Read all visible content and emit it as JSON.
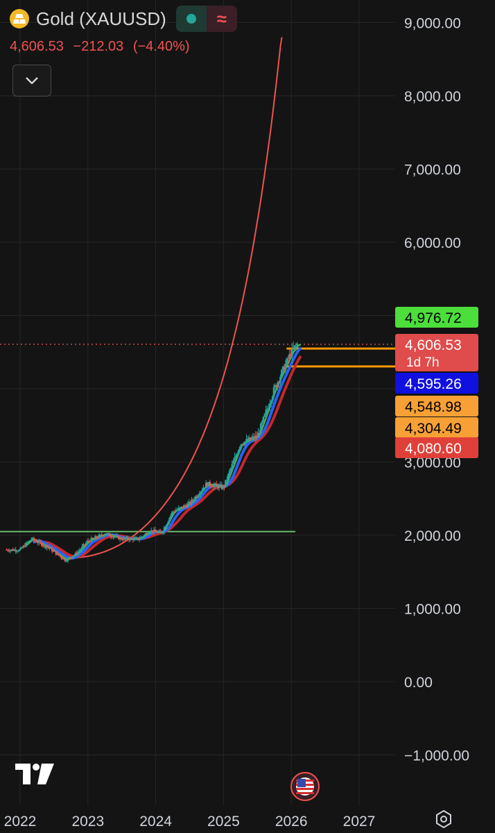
{
  "header": {
    "symbol": "Gold (XAUUSD)",
    "last_price": "4,606.53",
    "change": "−212.03",
    "change_pct": "(−4.40%)",
    "logo_icon": "gold-bars-icon",
    "status_icon": "market-open-dot-icon",
    "wave_icon": "approx-wave-icon"
  },
  "colors": {
    "background": "#141414",
    "up": "#26a69a",
    "down": "#ef5350",
    "ma_green": "#4caf50",
    "ma_blue": "#2962ff",
    "ma_red": "#c62828",
    "curve": "#ef5350",
    "hline": "#ff9800",
    "support_line": "#66bb6a"
  },
  "price_axis": {
    "labels": [
      "9,000.00",
      "8,000.00",
      "7,000.00",
      "6,000.00",
      "3,000.00",
      "2,000.00",
      "1,000.00",
      "0.00",
      "−1,000.00"
    ]
  },
  "time_axis": {
    "labels": [
      "2022",
      "2023",
      "2024",
      "2025",
      "2026",
      "2027"
    ]
  },
  "price_tags": [
    {
      "text": "4,976.72",
      "bg": "#4cde3a",
      "fg": "#000000"
    },
    {
      "text": "4,606.53",
      "sub": "1d 7h",
      "bg": "#e04b4b",
      "fg": "#ffffff"
    },
    {
      "text": "4,595.26",
      "bg": "#1010e0",
      "fg": "#ffffff"
    },
    {
      "text": "4,548.98",
      "bg": "#f7a035",
      "fg": "#000000"
    },
    {
      "text": "4,304.49",
      "bg": "#f7a035",
      "fg": "#000000"
    },
    {
      "text": "4,080.60",
      "bg": "#e0403a",
      "fg": "#ffffff"
    }
  ],
  "chart_data": {
    "type": "line",
    "x": [
      "2022-01",
      "2022-03",
      "2022-06",
      "2022-09",
      "2022-11",
      "2023-01",
      "2023-04",
      "2023-07",
      "2023-10",
      "2023-12",
      "2024-02",
      "2024-04",
      "2024-07",
      "2024-10",
      "2025-01",
      "2025-04",
      "2025-07",
      "2025-10",
      "2026-01",
      "2026-02"
    ],
    "series": [
      {
        "values": [
          1800,
          1950,
          1830,
          1660,
          1750,
          1920,
          2020,
          1950,
          1950,
          2060,
          2030,
          2320,
          2430,
          2700,
          2650,
          3250,
          3350,
          4000,
          4500,
          4606
        ]
      }
    ],
    "reference_lines": [
      2050,
      4548.98,
      4304.49
    ],
    "ylim": [
      -1000,
      9000
    ],
    "grid": true
  }
}
